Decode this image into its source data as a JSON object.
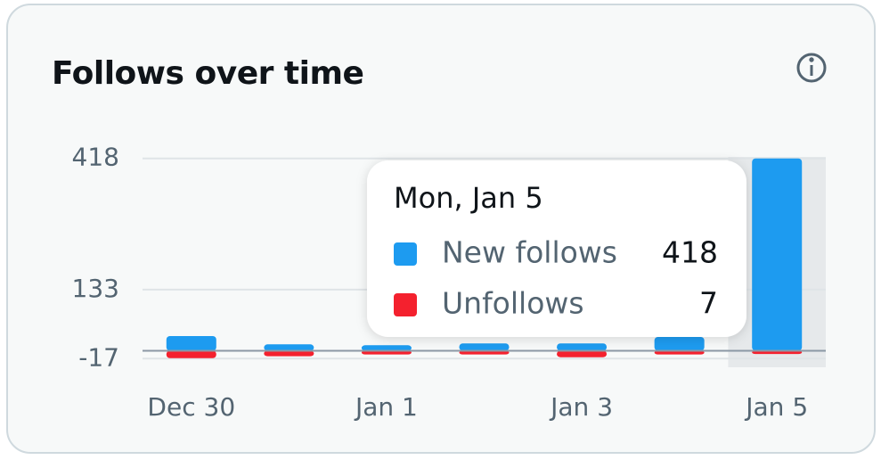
{
  "chart_data": {
    "type": "diverging-bar",
    "title": "Follows over time",
    "categories": [
      "Dec 30",
      null,
      "Jan 1",
      null,
      "Jan 3",
      null,
      "Jan 5"
    ],
    "series": [
      {
        "name": "New follows",
        "color": "#1d9bf0",
        "values": [
          32,
          14,
          12,
          16,
          16,
          30,
          418
        ]
      },
      {
        "name": "Unfollows",
        "color": "#f4212e",
        "values": [
          16,
          12,
          8,
          8,
          14,
          8,
          7
        ]
      }
    ],
    "ylim": [
      -32,
      433
    ],
    "yticks": [
      -17,
      133,
      418
    ],
    "grid": true,
    "tooltip": {
      "title": "Mon, Jan 5"
    }
  }
}
